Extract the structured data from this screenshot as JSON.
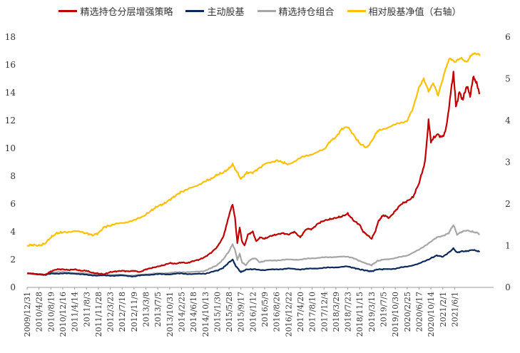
{
  "chart_data": {
    "type": "line",
    "title": "",
    "xlabel": "",
    "ylabel_left": "",
    "ylabel_right": "",
    "ylim_left": [
      0,
      18
    ],
    "yticks_left": [
      "0",
      "2",
      "4",
      "6",
      "8",
      "10",
      "12",
      "14",
      "16",
      "18"
    ],
    "ylim_right": [
      0,
      6
    ],
    "yticks_right": [
      "0",
      "1",
      "2",
      "3",
      "4",
      "5",
      "6"
    ],
    "grid": false,
    "legend_position": "top",
    "x_tick_labels": [
      "2009/12/31",
      "2010/4/28",
      "2010/8/19",
      "2010/12/16",
      "2011/4/14",
      "2011/8/3",
      "2011/11/28",
      "2012/3/23",
      "2012/7/18",
      "2012/11/9",
      "2013/3/8",
      "2013/7/5",
      "2013/10/31",
      "2014/2/25",
      "2014/6/18",
      "2014/10/13",
      "2015/1/30",
      "2015/5/28",
      "2015/9/17",
      "2016/1/12",
      "2016/5/9",
      "2016/8/26",
      "2016/12/22",
      "2017/4/20",
      "2017/8/10",
      "2017/12/4",
      "2018/3/29",
      "2018/7/23",
      "2018/11/15",
      "2019/3/13",
      "2019/7/5",
      "2019/10/30",
      "2020/2/25",
      "2020/6/17",
      "2020/10/14",
      "2021/2/1",
      "2021/6/1"
    ],
    "series": [
      {
        "name": "精选持仓分层增强策略",
        "axis": "left",
        "color": "#c00000",
        "values": [
          [
            0,
            1.0
          ],
          [
            1,
            0.95
          ],
          [
            1.5,
            0.9
          ],
          [
            2,
            1.15
          ],
          [
            2.5,
            1.3
          ],
          [
            3,
            1.3
          ],
          [
            3.5,
            1.25
          ],
          [
            4,
            1.3
          ],
          [
            4.5,
            1.2
          ],
          [
            5,
            1.2
          ],
          [
            5.5,
            1.05
          ],
          [
            6,
            1.0
          ],
          [
            6.5,
            0.95
          ],
          [
            7,
            1.1
          ],
          [
            7.5,
            1.15
          ],
          [
            8,
            1.2
          ],
          [
            8.5,
            1.15
          ],
          [
            9,
            1.2
          ],
          [
            9.5,
            1.1
          ],
          [
            10,
            1.3
          ],
          [
            10.5,
            1.4
          ],
          [
            11,
            1.5
          ],
          [
            11.5,
            1.6
          ],
          [
            12,
            1.75
          ],
          [
            12.5,
            1.7
          ],
          [
            13,
            1.8
          ],
          [
            13.5,
            1.75
          ],
          [
            14,
            1.9
          ],
          [
            14.5,
            2.0
          ],
          [
            15,
            2.2
          ],
          [
            15.5,
            2.5
          ],
          [
            16,
            2.9
          ],
          [
            16.5,
            3.6
          ],
          [
            16.8,
            4.5
          ],
          [
            17,
            5.2
          ],
          [
            17.3,
            6.0
          ],
          [
            17.5,
            5.0
          ],
          [
            17.7,
            3.2
          ],
          [
            17.9,
            4.3
          ],
          [
            18.1,
            3.3
          ],
          [
            18.3,
            3.0
          ],
          [
            18.6,
            3.8
          ],
          [
            19,
            4.0
          ],
          [
            19.3,
            3.3
          ],
          [
            19.6,
            3.6
          ],
          [
            20,
            3.5
          ],
          [
            20.5,
            3.7
          ],
          [
            21,
            3.8
          ],
          [
            21.5,
            3.9
          ],
          [
            22,
            3.8
          ],
          [
            22.5,
            4.0
          ],
          [
            23,
            3.6
          ],
          [
            23.5,
            4.2
          ],
          [
            24,
            4.2
          ],
          [
            24.5,
            4.6
          ],
          [
            25,
            4.8
          ],
          [
            25.5,
            4.9
          ],
          [
            26,
            5.0
          ],
          [
            26.5,
            5.1
          ],
          [
            27,
            5.3
          ],
          [
            27.5,
            4.8
          ],
          [
            28,
            4.5
          ],
          [
            28.3,
            4.0
          ],
          [
            28.6,
            3.8
          ],
          [
            29,
            3.5
          ],
          [
            29.3,
            4.0
          ],
          [
            29.6,
            4.8
          ],
          [
            30,
            5.2
          ],
          [
            30.5,
            5.0
          ],
          [
            31,
            5.5
          ],
          [
            31.5,
            6.0
          ],
          [
            32,
            6.2
          ],
          [
            32.5,
            6.5
          ],
          [
            33,
            7.5
          ],
          [
            33.5,
            9.0
          ],
          [
            33.8,
            12.0
          ],
          [
            34,
            10.5
          ],
          [
            34.5,
            11.0
          ],
          [
            35,
            10.8
          ],
          [
            35.3,
            11.5
          ],
          [
            35.6,
            13.5
          ],
          [
            35.9,
            15.5
          ],
          [
            36.1,
            13.0
          ],
          [
            36.4,
            14.0
          ],
          [
            36.7,
            13.5
          ],
          [
            37,
            14.5
          ],
          [
            37.3,
            13.8
          ],
          [
            37.6,
            15.2
          ],
          [
            37.9,
            14.5
          ],
          [
            38.1,
            14.0
          ]
        ]
      },
      {
        "name": "主动股基",
        "axis": "left",
        "color": "#0b2a5b",
        "values": [
          [
            0,
            1.0
          ],
          [
            1,
            0.95
          ],
          [
            1.5,
            0.9
          ],
          [
            2,
            1.0
          ],
          [
            3,
            1.0
          ],
          [
            4,
            1.0
          ],
          [
            5,
            0.9
          ],
          [
            6,
            0.85
          ],
          [
            7,
            0.85
          ],
          [
            8,
            0.85
          ],
          [
            9,
            0.8
          ],
          [
            10,
            0.9
          ],
          [
            11,
            0.95
          ],
          [
            12,
            0.95
          ],
          [
            13,
            1.0
          ],
          [
            14,
            0.95
          ],
          [
            15,
            1.0
          ],
          [
            16,
            1.2
          ],
          [
            16.5,
            1.4
          ],
          [
            17,
            1.8
          ],
          [
            17.3,
            2.0
          ],
          [
            17.6,
            1.5
          ],
          [
            18,
            1.1
          ],
          [
            18.5,
            1.3
          ],
          [
            19,
            1.3
          ],
          [
            20,
            1.25
          ],
          [
            21,
            1.3
          ],
          [
            22,
            1.35
          ],
          [
            23,
            1.3
          ],
          [
            24,
            1.35
          ],
          [
            25,
            1.4
          ],
          [
            26,
            1.45
          ],
          [
            27,
            1.5
          ],
          [
            27.5,
            1.4
          ],
          [
            28,
            1.3
          ],
          [
            28.6,
            1.2
          ],
          [
            29,
            1.15
          ],
          [
            29.5,
            1.3
          ],
          [
            30,
            1.3
          ],
          [
            31,
            1.35
          ],
          [
            32,
            1.5
          ],
          [
            33,
            1.7
          ],
          [
            34,
            2.1
          ],
          [
            34.5,
            2.3
          ],
          [
            35,
            2.2
          ],
          [
            35.5,
            2.5
          ],
          [
            35.9,
            2.8
          ],
          [
            36.2,
            2.5
          ],
          [
            36.6,
            2.6
          ],
          [
            37,
            2.6
          ],
          [
            37.5,
            2.7
          ],
          [
            38,
            2.6
          ],
          [
            38.1,
            2.55
          ]
        ]
      },
      {
        "name": "精选持仓组合",
        "axis": "left",
        "color": "#a6a6a6",
        "values": [
          [
            0,
            1.0
          ],
          [
            1,
            0.95
          ],
          [
            1.5,
            0.9
          ],
          [
            2,
            1.05
          ],
          [
            2.5,
            1.1
          ],
          [
            3,
            1.1
          ],
          [
            4,
            1.05
          ],
          [
            5,
            1.0
          ],
          [
            6,
            0.9
          ],
          [
            7,
            0.9
          ],
          [
            8,
            0.9
          ],
          [
            9,
            0.85
          ],
          [
            10,
            0.95
          ],
          [
            11,
            1.0
          ],
          [
            12,
            1.05
          ],
          [
            13,
            1.1
          ],
          [
            14,
            1.1
          ],
          [
            15,
            1.2
          ],
          [
            15.5,
            1.4
          ],
          [
            16,
            1.6
          ],
          [
            16.5,
            2.0
          ],
          [
            17,
            2.6
          ],
          [
            17.3,
            3.1
          ],
          [
            17.5,
            2.7
          ],
          [
            17.7,
            2.0
          ],
          [
            17.9,
            2.4
          ],
          [
            18.1,
            1.8
          ],
          [
            18.4,
            1.6
          ],
          [
            18.8,
            2.0
          ],
          [
            19.2,
            2.1
          ],
          [
            19.6,
            1.8
          ],
          [
            20,
            1.9
          ],
          [
            21,
            1.95
          ],
          [
            22,
            2.0
          ],
          [
            23,
            2.0
          ],
          [
            24,
            2.1
          ],
          [
            25,
            2.15
          ],
          [
            26,
            2.2
          ],
          [
            27,
            2.2
          ],
          [
            27.5,
            2.1
          ],
          [
            28,
            1.9
          ],
          [
            28.6,
            1.7
          ],
          [
            29,
            1.6
          ],
          [
            29.5,
            1.9
          ],
          [
            30,
            2.0
          ],
          [
            31,
            2.1
          ],
          [
            32,
            2.3
          ],
          [
            33,
            2.7
          ],
          [
            34,
            3.3
          ],
          [
            34.5,
            3.6
          ],
          [
            35,
            3.7
          ],
          [
            35.5,
            3.9
          ],
          [
            35.9,
            4.5
          ],
          [
            36.2,
            3.8
          ],
          [
            36.6,
            4.0
          ],
          [
            37,
            4.1
          ],
          [
            37.5,
            4.0
          ],
          [
            38,
            3.9
          ],
          [
            38.1,
            3.8
          ]
        ]
      },
      {
        "name": "相对股基净值（右轴）",
        "axis": "right",
        "color": "#ffc000",
        "values": [
          [
            0,
            1.0
          ],
          [
            0.5,
            1.02
          ],
          [
            1,
            1.0
          ],
          [
            1.5,
            1.05
          ],
          [
            2,
            1.2
          ],
          [
            2.5,
            1.3
          ],
          [
            3,
            1.32
          ],
          [
            4,
            1.35
          ],
          [
            5,
            1.3
          ],
          [
            5.5,
            1.25
          ],
          [
            6,
            1.3
          ],
          [
            6.5,
            1.45
          ],
          [
            7,
            1.48
          ],
          [
            8,
            1.55
          ],
          [
            9,
            1.6
          ],
          [
            10,
            1.75
          ],
          [
            10.5,
            1.85
          ],
          [
            11,
            1.95
          ],
          [
            11.5,
            2.0
          ],
          [
            12,
            2.1
          ],
          [
            12.5,
            2.2
          ],
          [
            13,
            2.3
          ],
          [
            14,
            2.4
          ],
          [
            15,
            2.55
          ],
          [
            15.5,
            2.6
          ],
          [
            16,
            2.7
          ],
          [
            16.5,
            2.75
          ],
          [
            17,
            2.85
          ],
          [
            17.3,
            2.95
          ],
          [
            17.6,
            2.8
          ],
          [
            18,
            2.6
          ],
          [
            18.5,
            2.75
          ],
          [
            19,
            2.75
          ],
          [
            19.5,
            2.85
          ],
          [
            20,
            2.95
          ],
          [
            21,
            3.05
          ],
          [
            21.5,
            3.0
          ],
          [
            22,
            2.95
          ],
          [
            23,
            3.1
          ],
          [
            24,
            3.2
          ],
          [
            25,
            3.3
          ],
          [
            25.5,
            3.5
          ],
          [
            26,
            3.6
          ],
          [
            26.5,
            3.8
          ],
          [
            27,
            3.85
          ],
          [
            27.5,
            3.65
          ],
          [
            28,
            3.45
          ],
          [
            28.6,
            3.35
          ],
          [
            29,
            3.5
          ],
          [
            29.5,
            3.75
          ],
          [
            30,
            3.8
          ],
          [
            31,
            3.9
          ],
          [
            32,
            4.0
          ],
          [
            32.5,
            4.3
          ],
          [
            33,
            4.8
          ],
          [
            33.4,
            5.0
          ],
          [
            33.8,
            4.7
          ],
          [
            34.2,
            4.9
          ],
          [
            34.6,
            4.6
          ],
          [
            35,
            5.0
          ],
          [
            35.3,
            5.3
          ],
          [
            35.6,
            5.5
          ],
          [
            36,
            5.4
          ],
          [
            36.5,
            5.5
          ],
          [
            37,
            5.4
          ],
          [
            37.5,
            5.6
          ],
          [
            38,
            5.6
          ],
          [
            38.1,
            5.55
          ]
        ]
      }
    ]
  }
}
